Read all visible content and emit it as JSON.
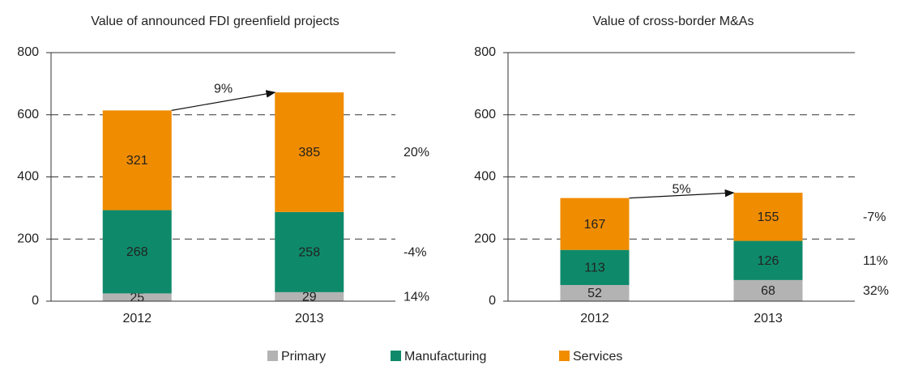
{
  "chart_data": [
    {
      "type": "stacked_bar",
      "title": "Value of announced FDI greenfield projects",
      "categories": [
        "2012",
        "2013"
      ],
      "series": [
        {
          "name": "Primary",
          "color": "#b3b3b3",
          "values": [
            25,
            29
          ],
          "change": "14%"
        },
        {
          "name": "Manufacturing",
          "color": "#0e8a6a",
          "values": [
            268,
            258
          ],
          "change": "-4%"
        },
        {
          "name": "Services",
          "color": "#f08c00",
          "values": [
            321,
            385
          ],
          "change": "20%"
        }
      ],
      "growth": "9%",
      "ylim": [
        0,
        800
      ],
      "yticks": [
        0,
        200,
        400,
        600,
        800
      ],
      "grid": true
    },
    {
      "type": "stacked_bar",
      "title": "Value of cross-border M&As",
      "categories": [
        "2012",
        "2013"
      ],
      "series": [
        {
          "name": "Primary",
          "color": "#b3b3b3",
          "values": [
            52,
            68
          ],
          "change": "32%"
        },
        {
          "name": "Manufacturing",
          "color": "#0e8a6a",
          "values": [
            113,
            126
          ],
          "change": "11%"
        },
        {
          "name": "Services",
          "color": "#f08c00",
          "values": [
            167,
            155
          ],
          "change": "-7%"
        }
      ],
      "growth": "5%",
      "ylim": [
        0,
        800
      ],
      "yticks": [
        0,
        200,
        400,
        600,
        800
      ],
      "grid": true
    }
  ]
}
